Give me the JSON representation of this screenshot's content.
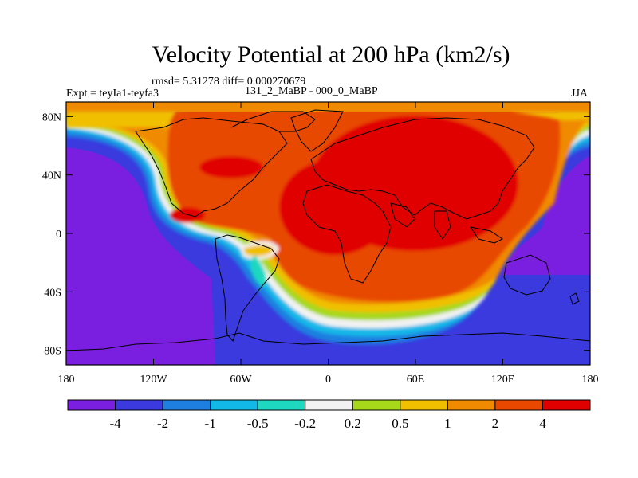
{
  "title": "Velocity Potential at 200 hPa (km2/s)",
  "stats": "rmsd= 5.31278 diff= 0.000270679",
  "left_label": "Expt = teyIa1-teyfa3",
  "center_label": "131_2_MaBP - 000_0_MaBP",
  "right_label": "JJA",
  "axes": {
    "lat_ticks": [
      "80N",
      "40N",
      "0",
      "40S",
      "80S"
    ],
    "lon_ticks": [
      "180",
      "120W",
      "60W",
      "0",
      "60E",
      "120E",
      "180"
    ]
  },
  "colorbar": {
    "levels": [
      "-4",
      "-2",
      "-1",
      "-0.5",
      "-0.2",
      "0.2",
      "0.5",
      "1",
      "2",
      "4"
    ],
    "colors": [
      "#7a1fe0",
      "#3a3adf",
      "#1f7fe0",
      "#12b8e8",
      "#1fd8c0",
      "#f2f2f2",
      "#a8d81a",
      "#f0c000",
      "#f08a00",
      "#e84800",
      "#e00000"
    ]
  },
  "map_colors": {
    "strong_negative": "#3a3adf",
    "very_negative": "#7a1fe0",
    "positive": "#e84800",
    "strong_positive": "#e00000",
    "moderate_positive": "#f08a00",
    "weak_positive": "#f0c000"
  }
}
